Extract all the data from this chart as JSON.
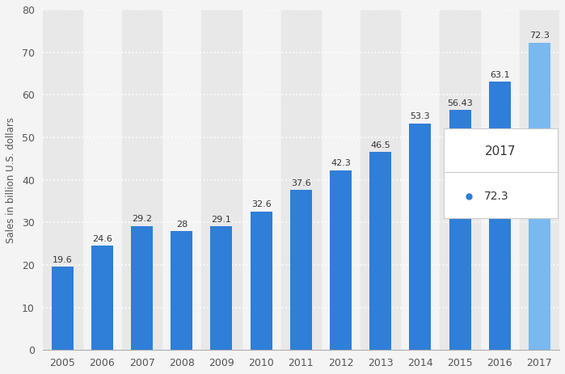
{
  "years": [
    "2005",
    "2006",
    "2007",
    "2008",
    "2009",
    "2010",
    "2011",
    "2012",
    "2013",
    "2014",
    "2015",
    "2016",
    "2017"
  ],
  "values": [
    19.6,
    24.6,
    29.2,
    28.0,
    29.1,
    32.6,
    37.6,
    42.3,
    46.5,
    53.3,
    56.43,
    63.1,
    72.3
  ],
  "bar_color": "#2f7ed8",
  "highlight_bar_color": "#7ab8f0",
  "highlight_index": 12,
  "ylabel": "Sales in billion U.S. dollars",
  "ylim": [
    0,
    80
  ],
  "yticks": [
    0,
    10,
    20,
    30,
    40,
    50,
    60,
    70,
    80
  ],
  "background_color": "#f4f4f4",
  "plot_bg_color": "#f4f4f4",
  "column_bg_color": "#e8e8e8",
  "grid_color": "#ffffff",
  "legend_year": "2017",
  "legend_value": "72.3",
  "legend_dot_color": "#2f7ed8",
  "label_fontsize": 8.0,
  "tick_fontsize": 9.0
}
